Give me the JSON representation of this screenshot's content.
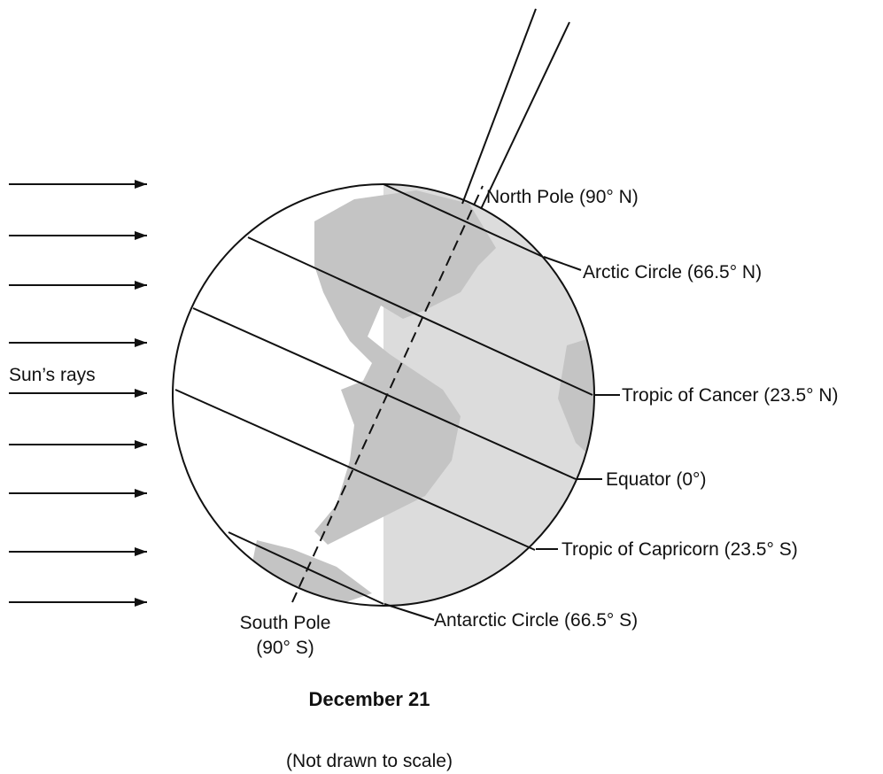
{
  "diagram": {
    "sun_rays": "Sun’s rays",
    "north_pole": "North Pole (90° N)",
    "arctic_circle": "Arctic Circle (66.5° N)",
    "tropic_of_cancer": "Tropic of Cancer (23.5° N)",
    "equator": "Equator (0°)",
    "tropic_of_capricorn": "Tropic of Capricorn (23.5° S)",
    "antarctic_circle": "Antarctic Circle (66.5° S)",
    "south_pole": [
      "South Pole",
      "(90° S)"
    ],
    "caption": "December 21",
    "note": "(Not drawn to scale)"
  }
}
